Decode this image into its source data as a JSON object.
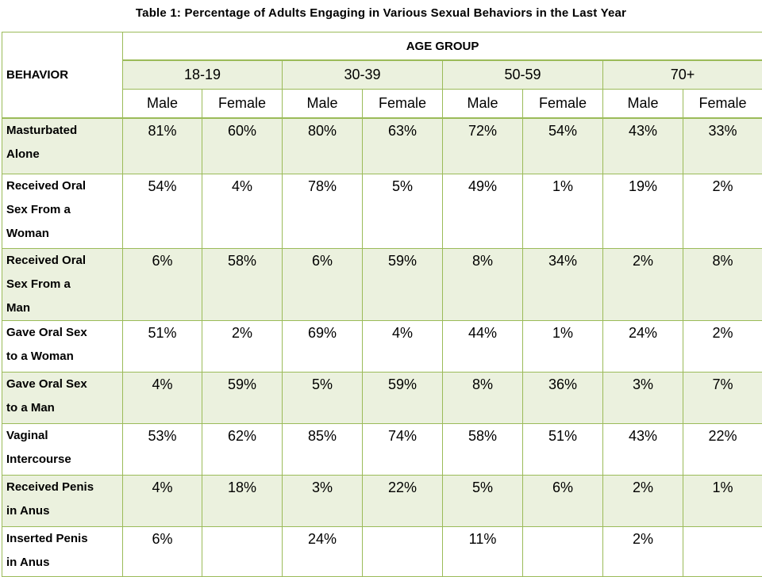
{
  "title": "Table 1: Percentage of Adults Engaging in Various Sexual Behaviors in the Last Year",
  "colors": {
    "border": "#9bbb59",
    "shade": "#ebf1de",
    "background": "#ffffff"
  },
  "chart_data": {
    "type": "table",
    "title": "Table 1: Percentage of Adults Engaging in Various Sexual Behaviors in the Last Year",
    "row_header_label": "BEHAVIOR",
    "group_header_label": "AGE GROUP",
    "age_groups": [
      "18-19",
      "30-39",
      "50-59",
      "70+"
    ],
    "sexes": [
      "Male",
      "Female"
    ],
    "columns": [
      "18-19 Male",
      "18-19 Female",
      "30-39 Male",
      "30-39 Female",
      "50-59 Male",
      "50-59 Female",
      "70+ Male",
      "70+ Female"
    ],
    "rows": [
      {
        "behavior": "Masturbated Alone",
        "lines": [
          "Masturbated",
          "Alone"
        ],
        "values": [
          "81%",
          "60%",
          "80%",
          "63%",
          "72%",
          "54%",
          "43%",
          "33%"
        ]
      },
      {
        "behavior": "Received Oral Sex From a Woman",
        "lines": [
          "Received Oral",
          "Sex From a",
          "Woman"
        ],
        "values": [
          "54%",
          "4%",
          "78%",
          "5%",
          "49%",
          "1%",
          "19%",
          "2%"
        ]
      },
      {
        "behavior": "Received Oral Sex From a Man",
        "lines": [
          "Received Oral",
          "Sex From a",
          "Man"
        ],
        "values": [
          "6%",
          "58%",
          "6%",
          "59%",
          "8%",
          "34%",
          "2%",
          "8%"
        ]
      },
      {
        "behavior": "Gave Oral Sex to a Woman",
        "lines": [
          "Gave Oral Sex",
          "to a Woman"
        ],
        "values": [
          "51%",
          "2%",
          "69%",
          "4%",
          "44%",
          "1%",
          "24%",
          "2%"
        ]
      },
      {
        "behavior": "Gave Oral Sex to a Man",
        "lines": [
          "Gave Oral Sex",
          "to a Man"
        ],
        "values": [
          "4%",
          "59%",
          "5%",
          "59%",
          "8%",
          "36%",
          "3%",
          "7%"
        ]
      },
      {
        "behavior": "Vaginal Intercourse",
        "lines": [
          "Vaginal",
          "Intercourse"
        ],
        "values": [
          "53%",
          "62%",
          "85%",
          "74%",
          "58%",
          "51%",
          "43%",
          "22%"
        ]
      },
      {
        "behavior": "Received Penis in Anus",
        "lines": [
          "Received Penis",
          "in Anus"
        ],
        "values": [
          "4%",
          "18%",
          "3%",
          "22%",
          "5%",
          "6%",
          "2%",
          "1%"
        ]
      },
      {
        "behavior": "Inserted Penis in Anus",
        "lines": [
          "Inserted Penis",
          "in Anus"
        ],
        "values": [
          "6%",
          "",
          "24%",
          "",
          "11%",
          "",
          "2%",
          ""
        ]
      }
    ]
  }
}
